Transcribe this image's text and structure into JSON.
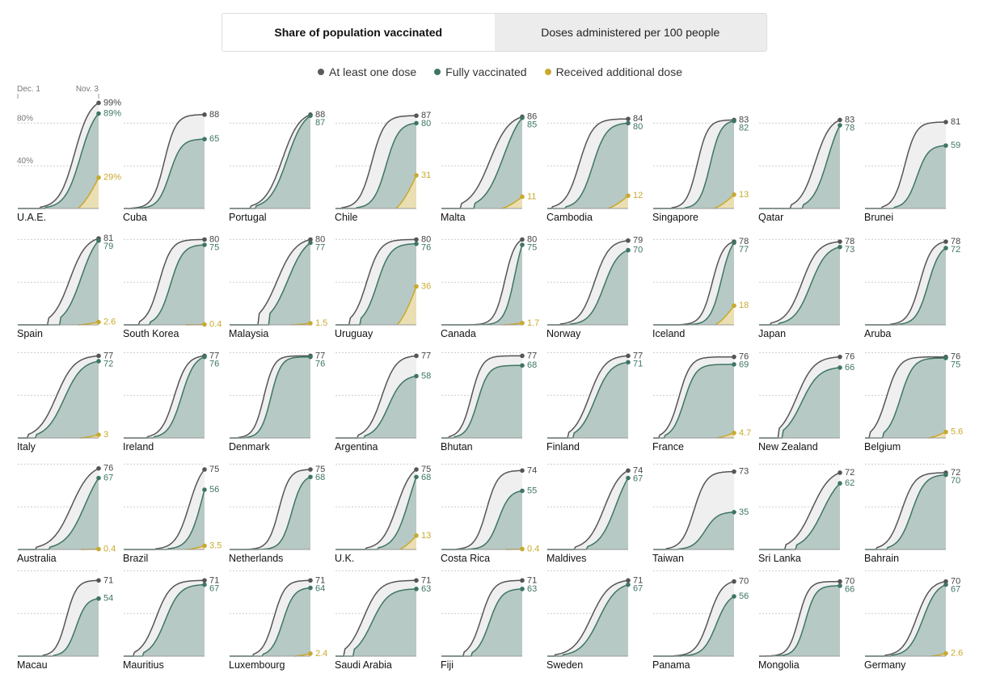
{
  "tabs": [
    {
      "label": "Share of population vaccinated",
      "active": true
    },
    {
      "label": "Doses administered per 100 people",
      "active": false
    }
  ],
  "legend": [
    {
      "label": "At least one dose",
      "color": "#5b5b5b"
    },
    {
      "label": "Fully vaccinated",
      "color": "#3e7566"
    },
    {
      "label": "Received additional dose",
      "color": "#c9a92e"
    }
  ],
  "colors": {
    "one_dose": "#555555",
    "one_dose_fill": "#efefef",
    "full": "#3e7566",
    "full_fill": "#b7c9c4",
    "additional": "#c9a92e",
    "additional_fill": "#eadfb3",
    "grid": "#cccccc",
    "baseline": "#999999"
  },
  "axis": {
    "x_start_label": "Dec. 1",
    "x_end_label": "Nov. 3",
    "y_ticks": [
      {
        "value": 80,
        "label": "80%"
      },
      {
        "value": 40,
        "label": "40%"
      }
    ],
    "y_range": [
      0,
      100
    ]
  },
  "chart_data": {
    "type": "area",
    "title": "",
    "x_range": [
      "Dec. 1",
      "Nov. 3"
    ],
    "ylim": [
      0,
      100
    ],
    "series_names": [
      "At least one dose",
      "Fully vaccinated",
      "Received additional dose"
    ],
    "countries": [
      {
        "name": "U.A.E.",
        "one_dose": 99,
        "fully": 89,
        "additional": 29,
        "one_label": "99%",
        "full_label": "89%",
        "add_label": "29%"
      },
      {
        "name": "Cuba",
        "one_dose": 88,
        "fully": 65
      },
      {
        "name": "Portugal",
        "one_dose": 88,
        "fully": 87
      },
      {
        "name": "Chile",
        "one_dose": 87,
        "fully": 80,
        "additional": 31
      },
      {
        "name": "Malta",
        "one_dose": 86,
        "fully": 85,
        "additional": 11
      },
      {
        "name": "Cambodia",
        "one_dose": 84,
        "fully": 80,
        "additional": 12
      },
      {
        "name": "Singapore",
        "one_dose": 83,
        "fully": 82,
        "additional": 13
      },
      {
        "name": "Qatar",
        "one_dose": 83,
        "fully": 78
      },
      {
        "name": "Brunei",
        "one_dose": 81,
        "fully": 59
      },
      {
        "name": "Spain",
        "one_dose": 81,
        "fully": 79,
        "additional": 2.6
      },
      {
        "name": "South Korea",
        "one_dose": 80,
        "fully": 75,
        "additional": 0.4
      },
      {
        "name": "Malaysia",
        "one_dose": 80,
        "fully": 77,
        "additional": 1.5
      },
      {
        "name": "Uruguay",
        "one_dose": 80,
        "fully": 76,
        "additional": 36
      },
      {
        "name": "Canada",
        "one_dose": 80,
        "fully": 75,
        "additional": 1.7
      },
      {
        "name": "Norway",
        "one_dose": 79,
        "fully": 70
      },
      {
        "name": "Iceland",
        "one_dose": 78,
        "fully": 77,
        "additional": 18
      },
      {
        "name": "Japan",
        "one_dose": 78,
        "fully": 73
      },
      {
        "name": "Aruba",
        "one_dose": 78,
        "fully": 72
      },
      {
        "name": "Italy",
        "one_dose": 77,
        "fully": 72,
        "additional": 3
      },
      {
        "name": "Ireland",
        "one_dose": 77,
        "fully": 76
      },
      {
        "name": "Denmark",
        "one_dose": 77,
        "fully": 76
      },
      {
        "name": "Argentina",
        "one_dose": 77,
        "fully": 58
      },
      {
        "name": "Bhutan",
        "one_dose": 77,
        "fully": 68
      },
      {
        "name": "Finland",
        "one_dose": 77,
        "fully": 71
      },
      {
        "name": "France",
        "one_dose": 76,
        "fully": 69,
        "additional": 4.7
      },
      {
        "name": "New Zealand",
        "one_dose": 76,
        "fully": 66
      },
      {
        "name": "Belgium",
        "one_dose": 76,
        "fully": 75,
        "additional": 5.6
      },
      {
        "name": "Australia",
        "one_dose": 76,
        "fully": 67,
        "additional": 0.4
      },
      {
        "name": "Brazil",
        "one_dose": 75,
        "fully": 56,
        "additional": 3.5
      },
      {
        "name": "Netherlands",
        "one_dose": 75,
        "fully": 68
      },
      {
        "name": "U.K.",
        "one_dose": 75,
        "fully": 68,
        "additional": 13
      },
      {
        "name": "Costa Rica",
        "one_dose": 74,
        "fully": 55,
        "additional": 0.4
      },
      {
        "name": "Maldives",
        "one_dose": 74,
        "fully": 67
      },
      {
        "name": "Taiwan",
        "one_dose": 73,
        "fully": 35
      },
      {
        "name": "Sri Lanka",
        "one_dose": 72,
        "fully": 62
      },
      {
        "name": "Bahrain",
        "one_dose": 72,
        "fully": 70
      },
      {
        "name": "Macau",
        "one_dose": 71,
        "fully": 54
      },
      {
        "name": "Mauritius",
        "one_dose": 71,
        "fully": 67
      },
      {
        "name": "Luxembourg",
        "one_dose": 71,
        "fully": 64,
        "additional": 2.4
      },
      {
        "name": "Saudi Arabia",
        "one_dose": 71,
        "fully": 63
      },
      {
        "name": "Fiji",
        "one_dose": 71,
        "fully": 63
      },
      {
        "name": "Sweden",
        "one_dose": 71,
        "fully": 67
      },
      {
        "name": "Panama",
        "one_dose": 70,
        "fully": 56
      },
      {
        "name": "Mongolia",
        "one_dose": 70,
        "fully": 66
      },
      {
        "name": "Germany",
        "one_dose": 70,
        "fully": 67,
        "additional": 2.6
      }
    ]
  }
}
